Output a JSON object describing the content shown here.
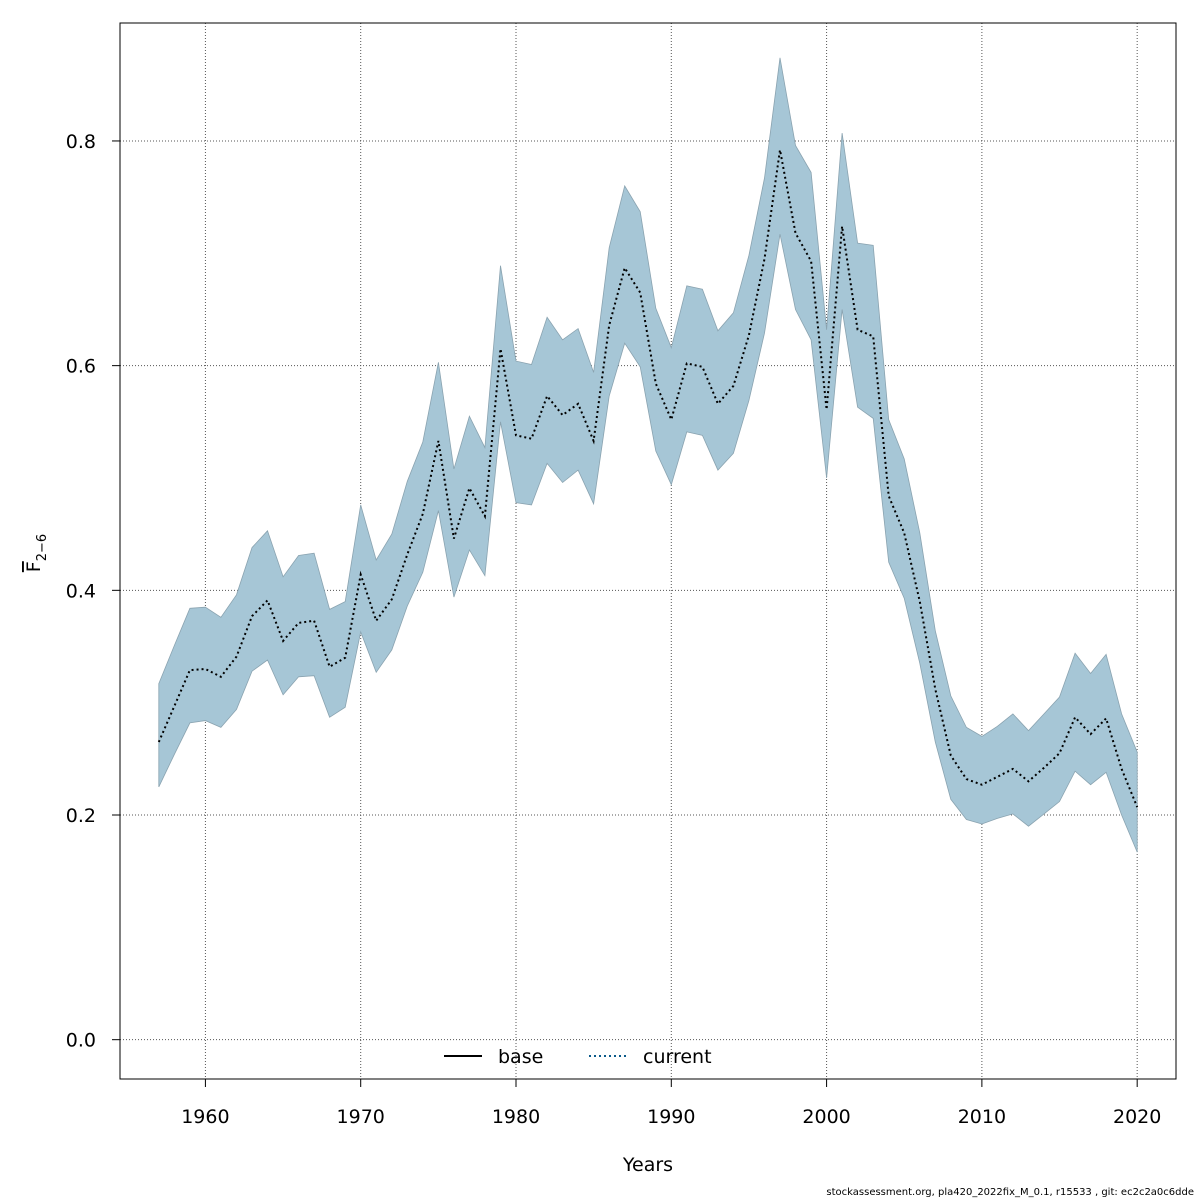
{
  "chart_data": {
    "type": "line",
    "title": "",
    "xlabel": "Years",
    "ylabel": "F",
    "ylabel_sub": "2−6",
    "xlim": [
      1954.5,
      2022.5
    ],
    "ylim": [
      -0.035,
      0.905
    ],
    "xticks": [
      1960,
      1970,
      1980,
      1990,
      2000,
      2010,
      2020
    ],
    "yticks": [
      0.0,
      0.2,
      0.4,
      0.6,
      0.8
    ],
    "ytick_labels": [
      "0.0",
      "0.2",
      "0.4",
      "0.6",
      "0.8"
    ],
    "grid": true,
    "legend_position": "bottom",
    "legend": [
      {
        "name": "base",
        "style": "solid",
        "color": "#000000"
      },
      {
        "name": "current",
        "style": "dotted",
        "color": "#0b5a8a"
      }
    ],
    "band_color": "#a6c6d6",
    "x": [
      1957,
      1958,
      1959,
      1960,
      1961,
      1962,
      1963,
      1964,
      1965,
      1966,
      1967,
      1968,
      1969,
      1970,
      1971,
      1972,
      1973,
      1974,
      1975,
      1976,
      1977,
      1978,
      1979,
      1980,
      1981,
      1982,
      1983,
      1984,
      1985,
      1986,
      1987,
      1988,
      1989,
      1990,
      1991,
      1992,
      1993,
      1994,
      1995,
      1996,
      1997,
      1998,
      1999,
      2000,
      2001,
      2002,
      2003,
      2004,
      2005,
      2006,
      2007,
      2008,
      2009,
      2010,
      2011,
      2012,
      2013,
      2014,
      2015,
      2016,
      2017,
      2018,
      2019,
      2020
    ],
    "series": [
      {
        "name": "current",
        "values": [
          0.265,
          0.297,
          0.329,
          0.33,
          0.323,
          0.341,
          0.377,
          0.391,
          0.355,
          0.371,
          0.373,
          0.332,
          0.34,
          0.414,
          0.373,
          0.392,
          0.432,
          0.468,
          0.533,
          0.446,
          0.491,
          0.466,
          0.615,
          0.538,
          0.535,
          0.573,
          0.556,
          0.566,
          0.533,
          0.636,
          0.687,
          0.665,
          0.584,
          0.552,
          0.602,
          0.599,
          0.566,
          0.582,
          0.627,
          0.695,
          0.792,
          0.718,
          0.693,
          0.561,
          0.724,
          0.632,
          0.626,
          0.484,
          0.451,
          0.39,
          0.312,
          0.253,
          0.232,
          0.227,
          0.234,
          0.241,
          0.23,
          0.242,
          0.255,
          0.287,
          0.272,
          0.286,
          0.241,
          0.207
        ],
        "lower": [
          0.225,
          0.254,
          0.282,
          0.284,
          0.278,
          0.294,
          0.328,
          0.338,
          0.307,
          0.323,
          0.324,
          0.287,
          0.296,
          0.363,
          0.327,
          0.347,
          0.386,
          0.416,
          0.471,
          0.394,
          0.436,
          0.413,
          0.55,
          0.478,
          0.476,
          0.513,
          0.496,
          0.507,
          0.477,
          0.573,
          0.62,
          0.599,
          0.524,
          0.494,
          0.541,
          0.538,
          0.507,
          0.522,
          0.569,
          0.629,
          0.717,
          0.65,
          0.623,
          0.5,
          0.65,
          0.563,
          0.553,
          0.425,
          0.393,
          0.335,
          0.265,
          0.214,
          0.196,
          0.192,
          0.197,
          0.201,
          0.19,
          0.201,
          0.212,
          0.239,
          0.227,
          0.238,
          0.2,
          0.167
        ],
        "upper": [
          0.317,
          0.351,
          0.384,
          0.385,
          0.376,
          0.396,
          0.438,
          0.453,
          0.412,
          0.431,
          0.433,
          0.383,
          0.39,
          0.476,
          0.427,
          0.45,
          0.497,
          0.532,
          0.603,
          0.508,
          0.555,
          0.527,
          0.689,
          0.604,
          0.601,
          0.643,
          0.623,
          0.633,
          0.594,
          0.705,
          0.76,
          0.737,
          0.651,
          0.616,
          0.671,
          0.668,
          0.631,
          0.647,
          0.698,
          0.767,
          0.874,
          0.796,
          0.772,
          0.632,
          0.807,
          0.709,
          0.707,
          0.552,
          0.517,
          0.451,
          0.364,
          0.306,
          0.278,
          0.27,
          0.279,
          0.29,
          0.275,
          0.29,
          0.305,
          0.344,
          0.326,
          0.343,
          0.29,
          0.256
        ]
      }
    ]
  },
  "footer": "stockassessment.org, pla420_2022fix_M_0.1, r15533 , git: ec2c2a0c6dde"
}
